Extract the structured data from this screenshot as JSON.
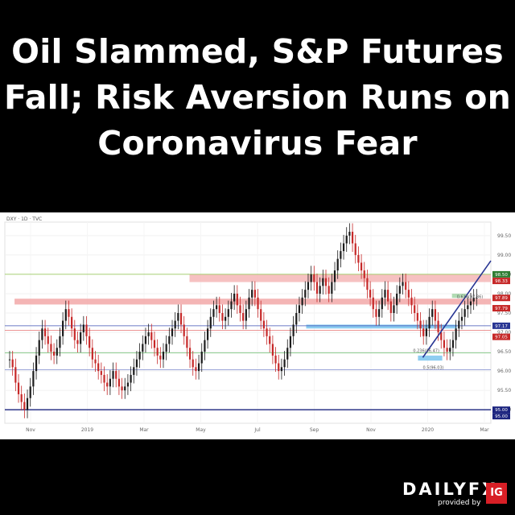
{
  "headline": {
    "line1": "Oil Slammed, S&P Futures",
    "line2": "Fall; Risk Aversion Runs on",
    "line3": "Coronavirus Fear"
  },
  "chart_data": {
    "type": "candlestick",
    "symbol_label": "DXY · 1D · TVC",
    "x_ticks": [
      "Nov",
      "2019",
      "Mar",
      "May",
      "Jul",
      "Sep",
      "Nov",
      "2020",
      "Mar"
    ],
    "y_ticks": [
      "99.50",
      "99.00",
      "98.50",
      "98.00",
      "97.50",
      "97.00",
      "96.50",
      "96.00",
      "95.50",
      "95.00"
    ],
    "ylim": [
      94.65,
      99.85
    ],
    "price_labels": [
      {
        "value": 98.5,
        "text": "98.50",
        "color": "#2e7d32"
      },
      {
        "value": 98.33,
        "text": "98.33",
        "color": "#c62828"
      },
      {
        "value": 97.89,
        "text": "97.89",
        "color": "#c62828"
      },
      {
        "value": 97.79,
        "text": "97.79",
        "color": "#c62828"
      },
      {
        "value": 97.17,
        "text": "97.17",
        "color": "#283593"
      },
      {
        "value": 97.05,
        "text": "97.05",
        "color": "#c62828"
      },
      {
        "value": 95.0,
        "text": "95.00",
        "color": "#1a237e"
      },
      {
        "value": 95.0,
        "text": "95.00",
        "color": "#1a237e"
      }
    ],
    "fib_labels": [
      {
        "value": 97.86,
        "text": "0.618(97.86)"
      },
      {
        "value": 96.47,
        "text": "0.236(96.47)"
      },
      {
        "value": 96.03,
        "text": "0.5(96.03)"
      }
    ],
    "zones": [
      {
        "name": "resistance-upper",
        "ymin": 98.3,
        "ymax": 98.5,
        "color": "#f4b6b6"
      },
      {
        "name": "resistance-lower",
        "ymin": 97.72,
        "ymax": 97.87,
        "color": "#f2a8a8"
      },
      {
        "name": "support-zone",
        "ymin": 97.1,
        "ymax": 97.2,
        "color": "#79c4ef"
      },
      {
        "name": "low-box",
        "ymin": 96.27,
        "ymax": 96.4,
        "color": "#79c4ef"
      },
      {
        "name": "target-box",
        "ymin": 97.89,
        "ymax": 98.0,
        "color": "#a5d6a7"
      }
    ],
    "series": [
      {
        "name": "DXY",
        "values": [
          96.3,
          96.1,
          95.7,
          95.4,
          95.2,
          95.0,
          95.3,
          95.6,
          96.0,
          96.4,
          96.8,
          97.1,
          96.9,
          96.7,
          96.5,
          96.4,
          96.6,
          96.9,
          97.3,
          97.6,
          97.4,
          97.1,
          96.8,
          96.7,
          97.0,
          97.2,
          96.9,
          96.6,
          96.3,
          96.2,
          96.0,
          95.9,
          95.7,
          95.6,
          95.8,
          96.0,
          95.8,
          95.6,
          95.5,
          95.6,
          95.7,
          95.9,
          96.1,
          96.3,
          96.5,
          96.7,
          96.9,
          97.0,
          96.8,
          96.6,
          96.4,
          96.3,
          96.5,
          96.7,
          96.9,
          97.1,
          97.3,
          97.5,
          97.2,
          96.9,
          96.6,
          96.3,
          96.1,
          96.0,
          96.2,
          96.5,
          96.8,
          97.1,
          97.4,
          97.6,
          97.7,
          97.5,
          97.3,
          97.4,
          97.6,
          97.8,
          98.0,
          97.7,
          97.5,
          97.3,
          97.6,
          97.9,
          98.1,
          97.9,
          97.6,
          97.3,
          97.1,
          96.9,
          96.7,
          96.4,
          96.2,
          96.0,
          96.1,
          96.3,
          96.6,
          96.9,
          97.2,
          97.5,
          97.7,
          97.9,
          98.1,
          98.3,
          98.5,
          98.3,
          98.0,
          98.2,
          98.4,
          98.2,
          98.0,
          98.3,
          98.6,
          98.9,
          99.1,
          99.3,
          99.5,
          99.6,
          99.3,
          99.0,
          98.8,
          98.6,
          98.4,
          98.1,
          97.9,
          97.6,
          97.4,
          97.6,
          97.9,
          98.1,
          97.8,
          97.5,
          97.7,
          98.0,
          98.2,
          98.3,
          98.1,
          97.9,
          97.7,
          97.5,
          97.3,
          97.1,
          96.9,
          97.1,
          97.4,
          97.6,
          97.3,
          97.0,
          96.8,
          96.6,
          96.5,
          96.6,
          96.8,
          97.1,
          97.3,
          97.4,
          97.6,
          97.7,
          97.8,
          97.9,
          97.9
        ]
      }
    ],
    "trendline": {
      "x_start": 0.86,
      "y_start": 96.35,
      "x_end": 1.0,
      "y_end": 98.85
    },
    "grid": true
  },
  "brand": {
    "name": "DAILYFX",
    "sub": "provided by",
    "ig": "IG"
  }
}
